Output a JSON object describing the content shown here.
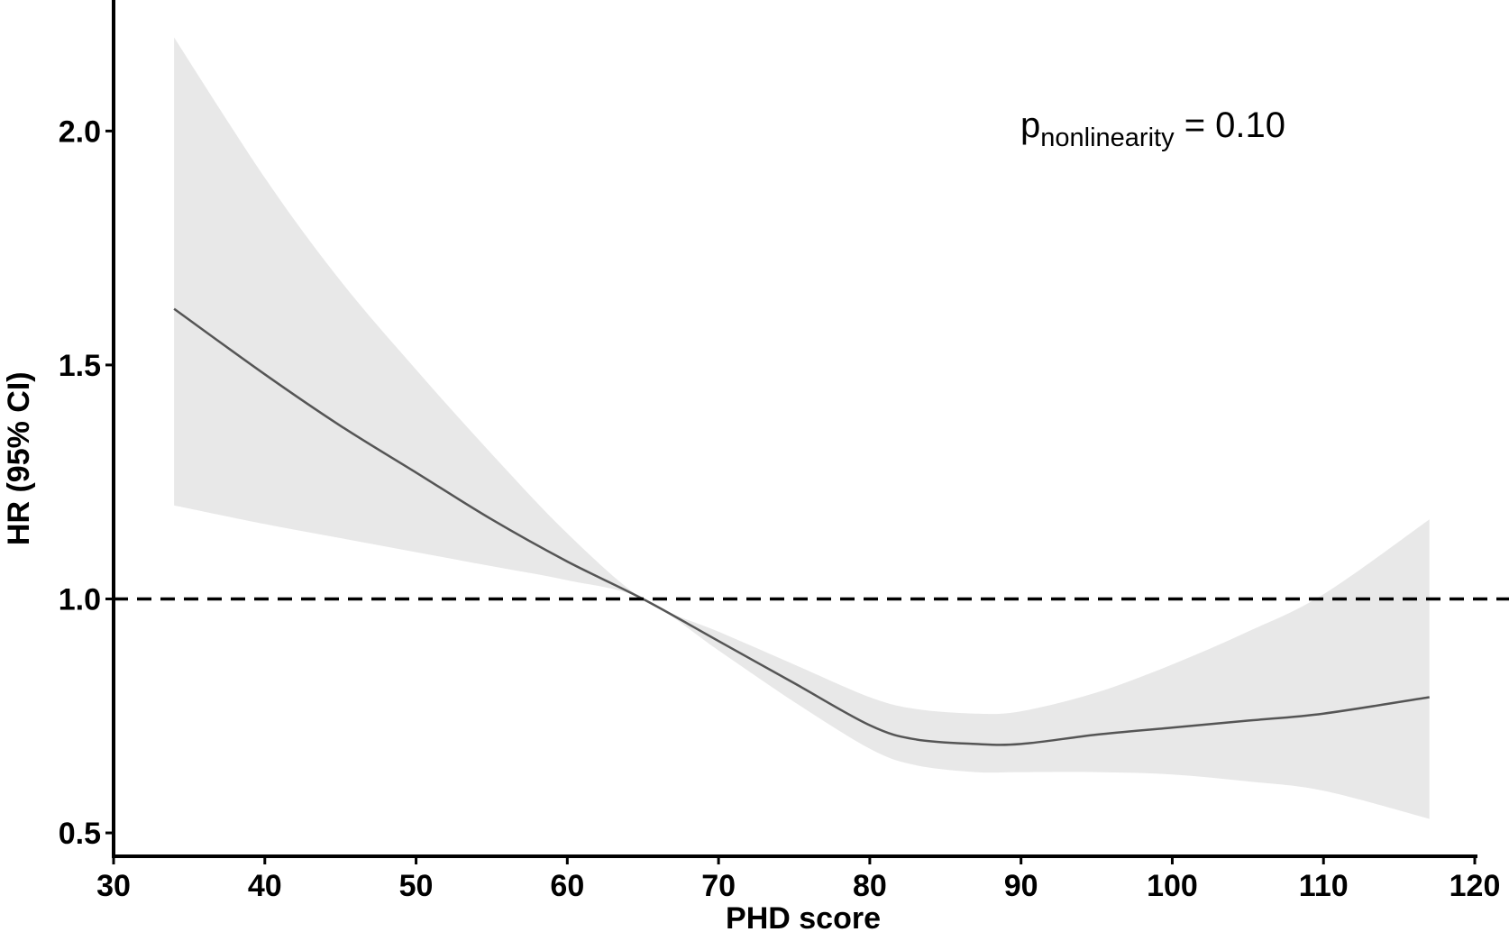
{
  "chart_data": {
    "type": "line",
    "xlabel": "PHD score",
    "ylabel": "HR (95% CI)",
    "xlim": [
      30,
      120
    ],
    "ylim": [
      0.45,
      2.28
    ],
    "x_ticks": [
      30,
      40,
      50,
      60,
      70,
      80,
      90,
      100,
      110,
      120
    ],
    "y_ticks": [
      0.5,
      1.0,
      1.5,
      2.0
    ],
    "x_tick_labels": [
      "30",
      "40",
      "50",
      "60",
      "70",
      "80",
      "90",
      "100",
      "110",
      "120"
    ],
    "y_tick_labels": [
      "0.5",
      "1.0",
      "1.5",
      "2.0"
    ],
    "reference_line": {
      "y": 1.0,
      "style": "dashed"
    },
    "annotation": {
      "main": "p",
      "subscript": "nonlinearity",
      "rest": " = 0.10"
    },
    "grid": false,
    "series": [
      {
        "x": [
          34,
          40,
          45,
          50,
          55,
          60,
          65,
          70,
          75,
          80,
          83,
          87,
          90,
          95,
          100,
          105,
          110,
          117
        ],
        "y": [
          1.62,
          1.48,
          1.37,
          1.27,
          1.17,
          1.08,
          1.0,
          0.91,
          0.82,
          0.73,
          0.7,
          0.69,
          0.69,
          0.71,
          0.725,
          0.74,
          0.755,
          0.79
        ],
        "lower": [
          1.2,
          1.16,
          1.13,
          1.1,
          1.07,
          1.04,
          1.0,
          0.89,
          0.78,
          0.68,
          0.645,
          0.63,
          0.63,
          0.63,
          0.625,
          0.61,
          0.59,
          0.53
        ],
        "upper": [
          2.2,
          1.9,
          1.68,
          1.49,
          1.31,
          1.14,
          1.0,
          0.93,
          0.86,
          0.79,
          0.765,
          0.755,
          0.76,
          0.8,
          0.86,
          0.93,
          1.01,
          1.17
        ]
      }
    ]
  },
  "colors": {
    "band": "#e8e8e8",
    "line": "#555555",
    "axis": "#000000",
    "reference": "#000000"
  }
}
